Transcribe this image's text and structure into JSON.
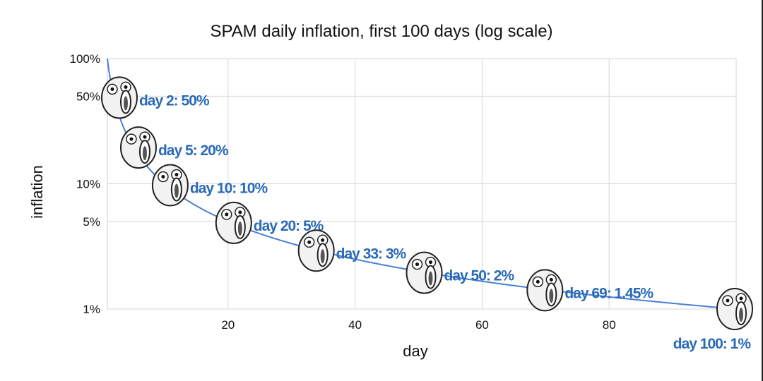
{
  "chart_data": {
    "type": "line",
    "title": "SPAM daily inflation, first 100 days (log scale)",
    "xlabel": "day",
    "ylabel": "inflation",
    "xlim": [
      1,
      100
    ],
    "ylim": [
      1,
      100
    ],
    "y_scale": "log",
    "grid": true,
    "x_ticks": [
      20,
      40,
      60,
      80,
      100
    ],
    "x_tick_labels": [
      "20",
      "40",
      "60",
      "80",
      ""
    ],
    "y_ticks": [
      100,
      50,
      10,
      5,
      1
    ],
    "y_tick_labels": [
      "100%",
      "50%",
      "10%",
      "5%",
      "1%"
    ],
    "series": [
      {
        "function": "100/day",
        "color": "#4a7fd4"
      }
    ],
    "annotations": [
      {
        "x": 2,
        "y": 50,
        "text": "day 2: 50%"
      },
      {
        "x": 5,
        "y": 20,
        "text": "day 5: 20%"
      },
      {
        "x": 10,
        "y": 10,
        "text": "day 10: 10%"
      },
      {
        "x": 20,
        "y": 5,
        "text": "day 20: 5%"
      },
      {
        "x": 33,
        "y": 3,
        "text": "day 33: 3%"
      },
      {
        "x": 50,
        "y": 2,
        "text": "day 50: 2%"
      },
      {
        "x": 69,
        "y": 1.45,
        "text": "day 69: 1.45%"
      },
      {
        "x": 100,
        "y": 1,
        "text": "day 100: 1%"
      }
    ],
    "annotation_color": "#2a6ab8",
    "marker_icon": "meme-face-icon"
  }
}
